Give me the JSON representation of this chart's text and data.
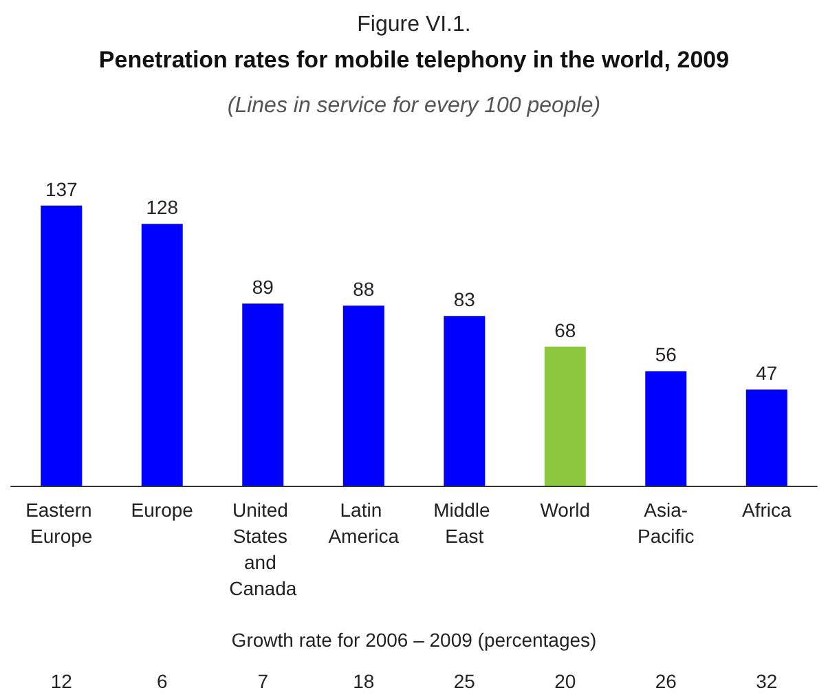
{
  "chart_data": {
    "type": "bar",
    "title": "Penetration rates for mobile telephony in the world, 2009",
    "subtitle": "(Lines in service for every 100 people)",
    "categories": [
      "Eastern Europe",
      "Europe",
      "United States and Canada",
      "Latin America",
      "Middle East",
      "World",
      "Asia-Pacific",
      "Africa"
    ],
    "values": [
      137,
      128,
      89,
      88,
      83,
      68,
      56,
      47
    ],
    "colors": [
      "#0000ff",
      "#0000ff",
      "#0000ff",
      "#0000ff",
      "#0000ff",
      "#8dc63f",
      "#0000ff",
      "#0000ff"
    ],
    "data_labels": true,
    "annotations": [
      "Figure VI.1.",
      "Growth rate for 2006 – 2009 (percentages)",
      "12",
      "6",
      "7",
      "18",
      "25",
      "20",
      "26",
      "32"
    ]
  }
}
